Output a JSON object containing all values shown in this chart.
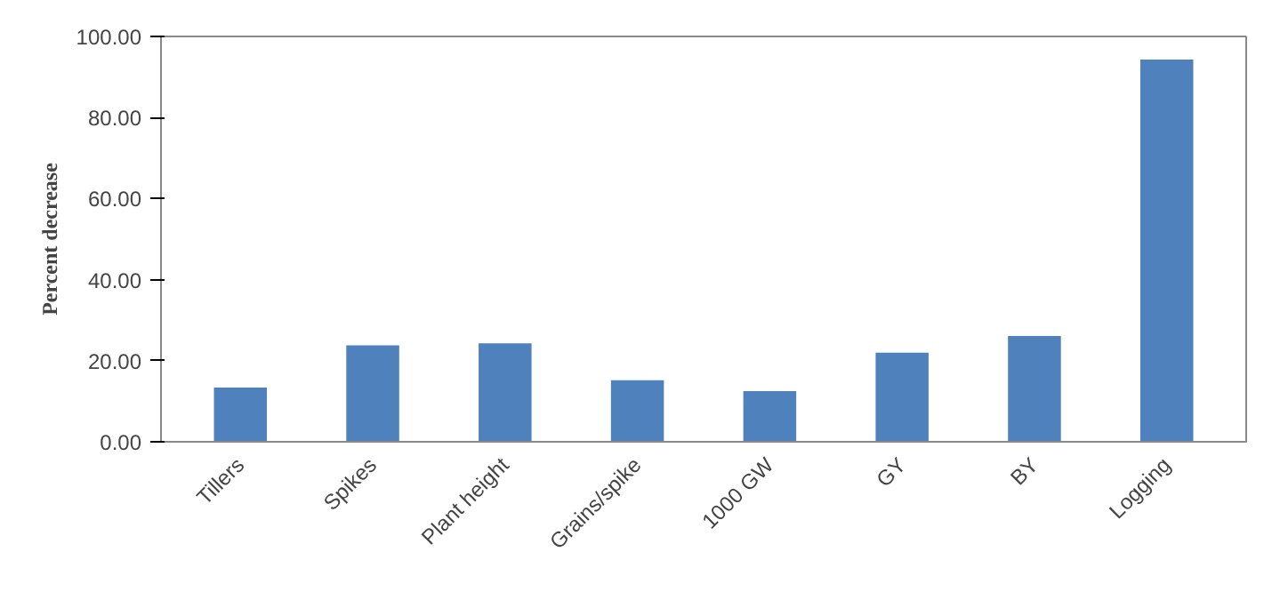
{
  "chart_data": {
    "type": "bar",
    "ylabel": "Percent decrease",
    "categories": [
      "Tillers",
      "Spikes",
      "Plant height",
      "Grains/spike",
      "1000 GW",
      "GY",
      "BY",
      "Logging"
    ],
    "values": [
      13.4,
      23.8,
      24.3,
      15.2,
      12.5,
      22.0,
      26.1,
      94.3
    ],
    "color": "#4f81bd",
    "ylim": [
      0,
      100
    ],
    "yticks": [
      {
        "value": 0,
        "label": "0.00"
      },
      {
        "value": 20,
        "label": "20.00"
      },
      {
        "value": 40,
        "label": "40.00"
      },
      {
        "value": 60,
        "label": "60.00"
      },
      {
        "value": 80,
        "label": "80.00"
      },
      {
        "value": 100,
        "label": "100.00"
      }
    ],
    "grid": false
  }
}
